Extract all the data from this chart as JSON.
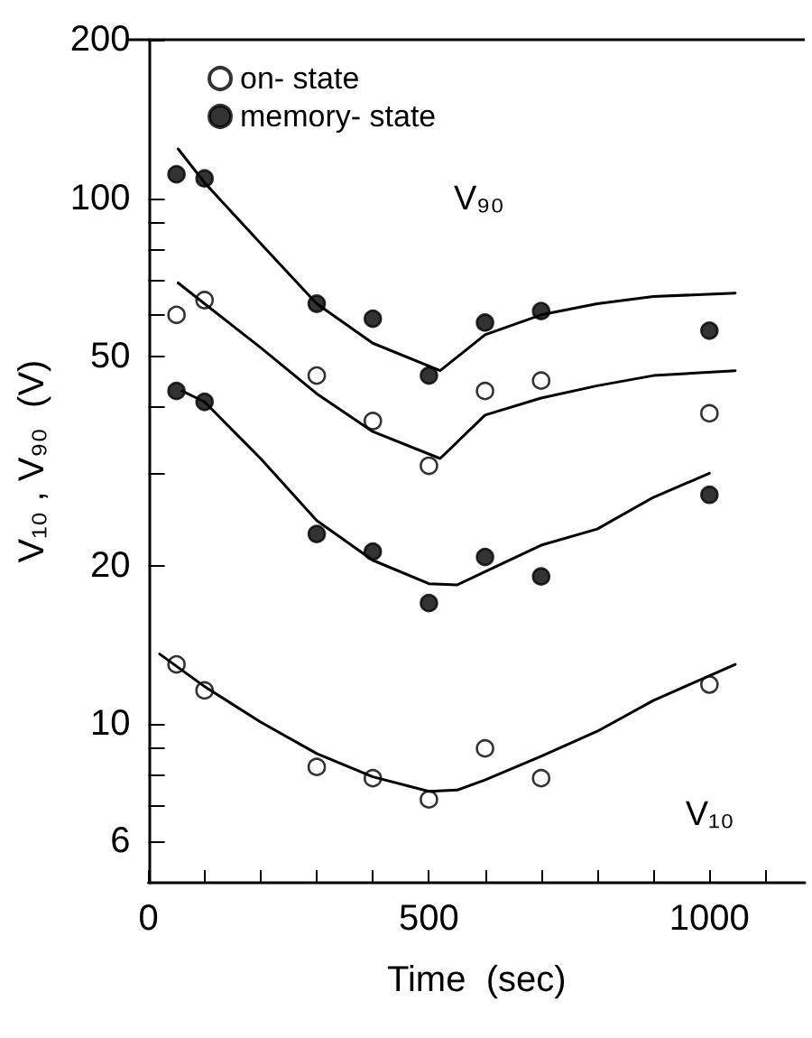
{
  "chart_data": {
    "type": "scatter",
    "xlabel": "Time  (sec)",
    "ylabel": "V₁₀ , V₉₀  (V)",
    "xlim": [
      0,
      1170
    ],
    "xticks": [
      0,
      {
        "value": 100,
        "label": null
      },
      {
        "value": 200,
        "label": null
      },
      {
        "value": 300,
        "label": null
      },
      {
        "value": 400,
        "label": null
      },
      500,
      {
        "value": 600,
        "label": null
      },
      {
        "value": 700,
        "label": null
      },
      {
        "value": 800,
        "label": null
      },
      {
        "value": 900,
        "label": null
      },
      1000,
      {
        "value": 1100,
        "label": null
      }
    ],
    "ylim": [
      5,
      200
    ],
    "yticks": [
      6,
      {
        "value": 7,
        "label": null
      },
      {
        "value": 8,
        "label": null
      },
      {
        "value": 9,
        "label": null
      },
      10,
      20,
      {
        "value": 30,
        "label": null
      },
      {
        "value": 40,
        "label": null
      },
      50,
      {
        "value": 60,
        "label": null
      },
      {
        "value": 70,
        "label": null
      },
      {
        "value": 80,
        "label": null
      },
      {
        "value": 90,
        "label": null
      },
      100,
      200
    ],
    "log": "y",
    "grid": false,
    "legend": "top",
    "marker": "circle",
    "annotations": [
      "V₉₀",
      "V₁₀"
    ],
    "series": [
      {
        "name": "on- state",
        "color": "#ffffff",
        "x": [
          50,
          100,
          300,
          400,
          500,
          600,
          700,
          1000
        ],
        "values": [
          60,
          64,
          46,
          37.7,
          31,
          43,
          45,
          39
        ]
      },
      {
        "name": "memory- state",
        "color": "#000000",
        "x": [
          50,
          100,
          300,
          400,
          500,
          600,
          700,
          1000
        ],
        "values": [
          111,
          109,
          63,
          59,
          46,
          58,
          61,
          56
        ]
      },
      {
        "color": "#000000",
        "x": [
          50,
          100,
          300,
          400,
          500,
          600,
          700,
          1000
        ],
        "values": [
          43,
          41,
          23,
          21.3,
          17,
          20.8,
          19.1,
          27.3
        ]
      },
      {
        "color": "#ffffff",
        "x": [
          50,
          100,
          300,
          400,
          500,
          600,
          700,
          1000
        ],
        "values": [
          13,
          11.6,
          8.3,
          7.9,
          7.2,
          9,
          7.9,
          11.9
        ]
      },
      {
        "type": "line",
        "color": "#000000",
        "marker": "none",
        "x": [
          53,
          100,
          200,
          300,
          400,
          520,
          600,
          700,
          800,
          900,
          1046
        ],
        "values": [
          124,
          107,
          82,
          63,
          53,
          47,
          55,
          60,
          63,
          65,
          66
        ]
      },
      {
        "type": "line",
        "color": "#000000",
        "marker": "none",
        "x": [
          53,
          100,
          200,
          300,
          400,
          520,
          600,
          700,
          800,
          900,
          1046
        ],
        "values": [
          69,
          63,
          52,
          42.5,
          36,
          32,
          38.7,
          41.7,
          44,
          46,
          47
        ]
      },
      {
        "type": "line",
        "color": "#000000",
        "marker": "none",
        "x": [
          60,
          100,
          200,
          300,
          400,
          500,
          550,
          600,
          700,
          800,
          900,
          1000
        ],
        "values": [
          43,
          41,
          32,
          24.4,
          20.5,
          18.5,
          18.4,
          19.5,
          21.9,
          23.5,
          27,
          30
        ]
      },
      {
        "type": "line",
        "color": "#000000",
        "marker": "none",
        "x": [
          20,
          100,
          200,
          300,
          400,
          500,
          550,
          600,
          700,
          800,
          900,
          1046
        ],
        "values": [
          13.6,
          11.8,
          10.1,
          8.8,
          7.95,
          7.46,
          7.5,
          7.84,
          8.7,
          9.7,
          11.1,
          13
        ]
      }
    ]
  }
}
